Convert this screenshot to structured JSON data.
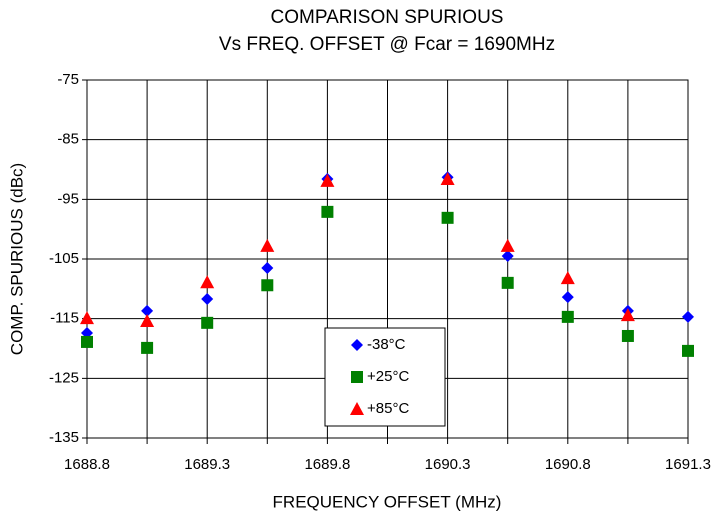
{
  "chart_data": {
    "type": "scatter",
    "title": "COMPARISON SPURIOUS",
    "subtitle": "Vs FREQ. OFFSET @  Fcar = 1690MHz",
    "x_label": "FREQUENCY OFFSET (MHz)",
    "y_label": "COMP. SPURIOUS (dBc)",
    "x": [
      1688.8,
      1689.05,
      1689.3,
      1689.55,
      1689.8,
      1690.3,
      1690.55,
      1690.8,
      1691.05,
      1691.3
    ],
    "series": [
      {
        "name": "-38°C",
        "color": "#0000ff",
        "marker": "diamond",
        "values": [
          -117.4,
          -113.7,
          -111.7,
          -106.5,
          -91.6,
          -91.3,
          -104.5,
          -111.4,
          -113.7,
          -114.7
        ]
      },
      {
        "name": "+25°C",
        "color": "#008000",
        "marker": "square",
        "values": [
          -118.9,
          -119.9,
          -115.7,
          -109.4,
          -97.1,
          -98.1,
          -109.0,
          -114.7,
          -117.9,
          -120.4
        ]
      },
      {
        "name": "+85°C",
        "color": "#ff0000",
        "marker": "triangle",
        "values": [
          -114.9,
          -115.4,
          -108.9,
          -102.8,
          -91.9,
          -91.6,
          -102.8,
          -108.2,
          -114.4,
          null
        ]
      }
    ],
    "xlim": [
      1688.8,
      1691.3
    ],
    "xticks": [
      1688.8,
      1689.3,
      1689.8,
      1690.3,
      1690.8,
      1691.3
    ],
    "xminor": [
      1689.05,
      1689.55,
      1690.05,
      1690.55,
      1691.05
    ],
    "ylim": [
      -135,
      -75
    ],
    "yticks": [
      -135,
      -125,
      -115,
      -105,
      -95,
      -85,
      -75
    ],
    "grid": true,
    "legend": "bottom-center"
  }
}
